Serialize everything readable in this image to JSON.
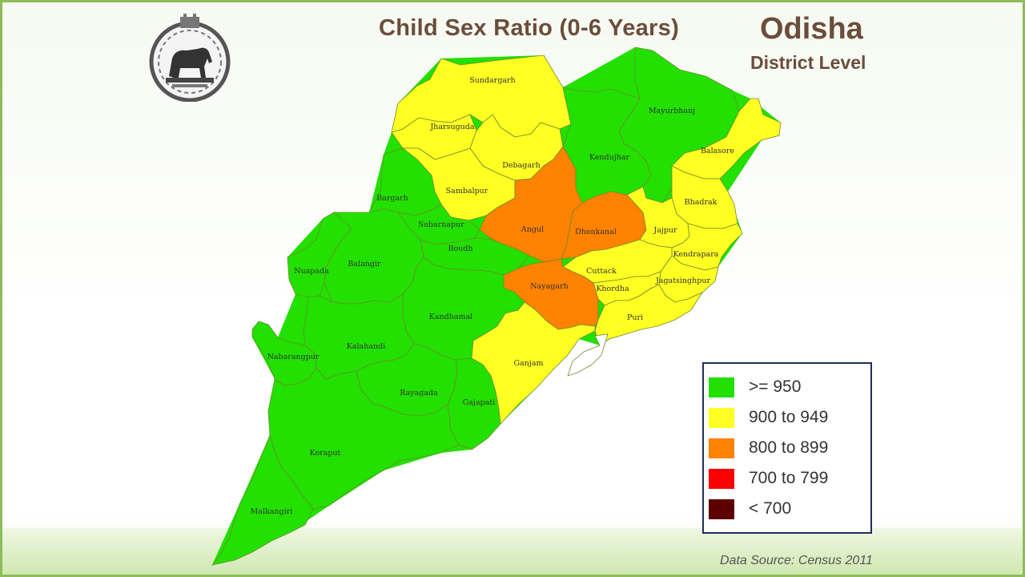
{
  "header": {
    "title": "Child Sex Ratio (0-6 Years)",
    "state": "Odisha",
    "level": "District Level"
  },
  "colors": {
    "ge950": "#22e000",
    "r900_949": "#ffff22",
    "r800_899": "#ff8200",
    "r700_799": "#ff0000",
    "lt700": "#5c0000",
    "border": "#6d8a30"
  },
  "legend": [
    {
      "label": ">= 950",
      "color": "#22e000"
    },
    {
      "label": "900 to 949",
      "color": "#ffff22"
    },
    {
      "label": "800 to 899",
      "color": "#ff8200"
    },
    {
      "label": "700 to 799",
      "color": "#ff0000"
    },
    {
      "label": "< 700",
      "color": "#5c0000"
    }
  ],
  "districts": [
    {
      "name": "Sundargarh",
      "category": "900 to 949"
    },
    {
      "name": "Jharsuguda",
      "category": "900 to 949"
    },
    {
      "name": "Debagarh",
      "category": "900 to 949"
    },
    {
      "name": "Sambalpur",
      "category": "900 to 949"
    },
    {
      "name": "Bargarh",
      "category": ">= 950"
    },
    {
      "name": "Mayurbhanj",
      "category": ">= 950"
    },
    {
      "name": "Kendujhar",
      "category": ">= 950"
    },
    {
      "name": "Balasore",
      "category": "900 to 949"
    },
    {
      "name": "Bhadrak",
      "category": "900 to 949"
    },
    {
      "name": "Angul",
      "category": "800 to 899"
    },
    {
      "name": "Dhenkanal",
      "category": "800 to 899"
    },
    {
      "name": "Jajpur",
      "category": "900 to 949"
    },
    {
      "name": "Kendrapara",
      "category": "900 to 949"
    },
    {
      "name": "Jagatsinghpur",
      "category": "900 to 949"
    },
    {
      "name": "Cuttack",
      "category": "900 to 949"
    },
    {
      "name": "Khordha",
      "category": "900 to 949"
    },
    {
      "name": "Puri",
      "category": "900 to 949"
    },
    {
      "name": "Nayagarh",
      "category": "800 to 899"
    },
    {
      "name": "Subarnapur",
      "category": ">= 950"
    },
    {
      "name": "Boudh",
      "category": ">= 950"
    },
    {
      "name": "Nuapada",
      "category": ">= 950"
    },
    {
      "name": "Balangir",
      "category": ">= 950"
    },
    {
      "name": "Kandhamal",
      "category": ">= 950"
    },
    {
      "name": "Nabarangpur",
      "category": ">= 950"
    },
    {
      "name": "Kalahandi",
      "category": ">= 950"
    },
    {
      "name": "Ganjam",
      "category": "900 to 949"
    },
    {
      "name": "Rayagada",
      "category": ">= 950"
    },
    {
      "name": "Gajapati",
      "category": ">= 950"
    },
    {
      "name": "Koraput",
      "category": ">= 950"
    },
    {
      "name": "Malkangiri",
      "category": ">= 950"
    }
  ],
  "source": "Data Source: Census 2011"
}
